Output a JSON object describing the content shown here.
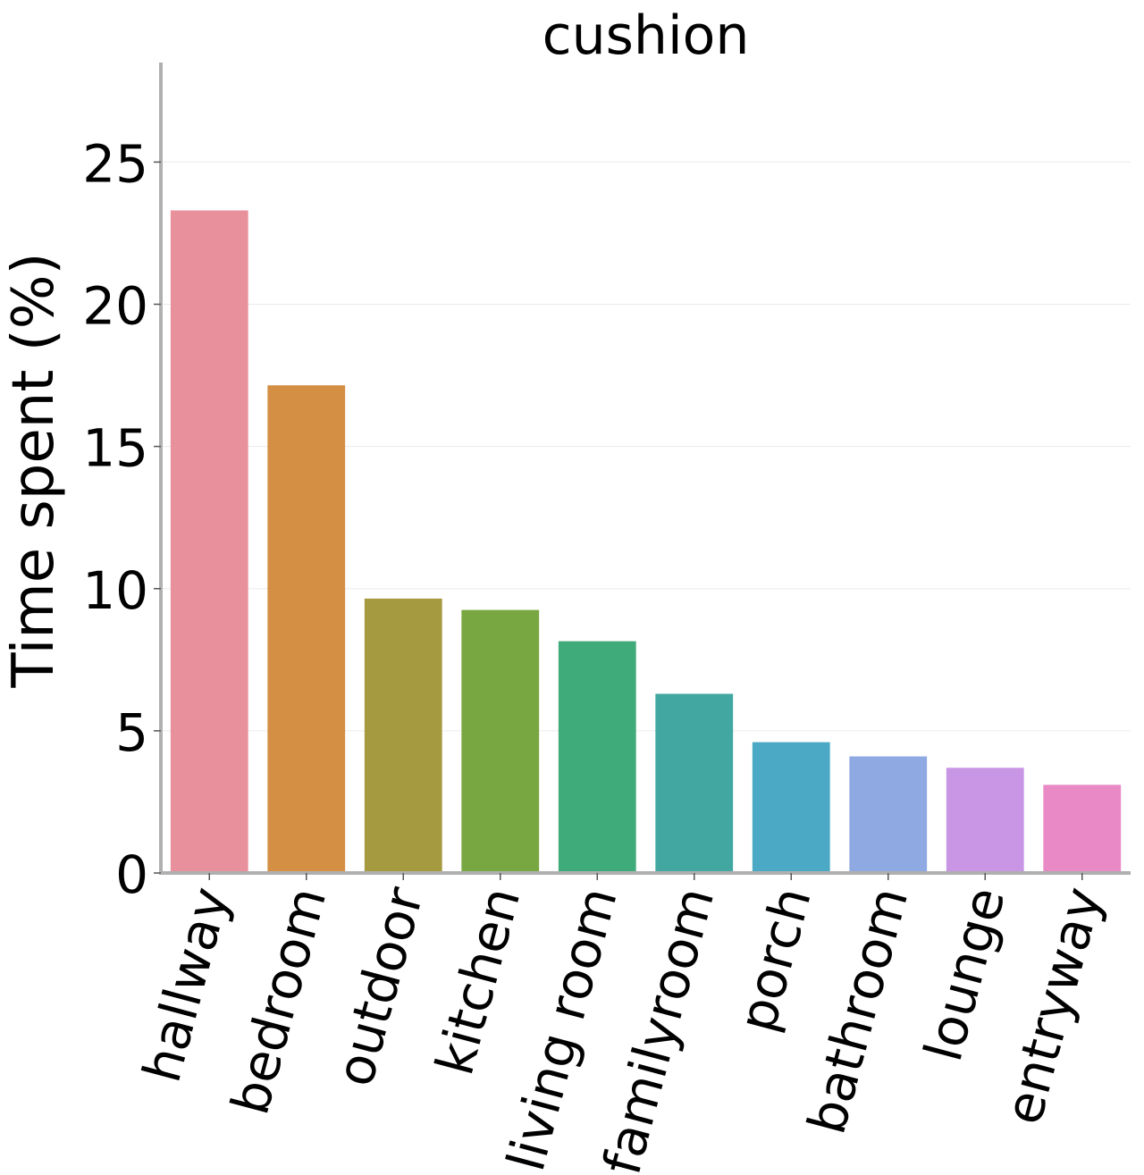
{
  "chart_data": {
    "type": "bar",
    "title": "cushion",
    "xlabel": "",
    "ylabel": "Time spent (%)",
    "categories": [
      "hallway",
      "bedroom",
      "outdoor",
      "kitchen",
      "living room",
      "familyroom",
      "porch",
      "bathroom",
      "lounge",
      "entryway"
    ],
    "values": [
      23.3,
      17.15,
      9.65,
      9.25,
      8.15,
      6.3,
      4.6,
      4.1,
      3.7,
      3.1
    ],
    "colors": [
      "#e8909c",
      "#d48f45",
      "#a59a40",
      "#78a640",
      "#40ab7a",
      "#41a7a0",
      "#4ba9c5",
      "#8fa9e3",
      "#c996e6",
      "#e98ac7"
    ],
    "yticks": [
      0,
      5,
      10,
      15,
      20,
      25
    ],
    "ylim": [
      0,
      28.5
    ],
    "grid": true,
    "legend": "none"
  }
}
